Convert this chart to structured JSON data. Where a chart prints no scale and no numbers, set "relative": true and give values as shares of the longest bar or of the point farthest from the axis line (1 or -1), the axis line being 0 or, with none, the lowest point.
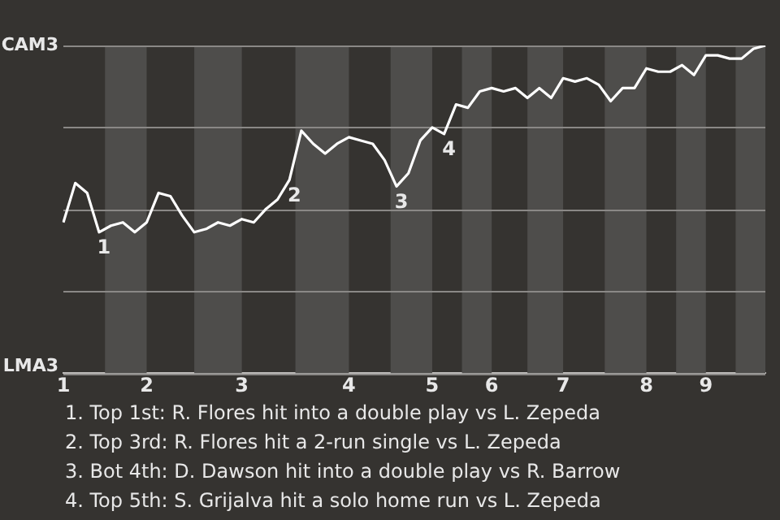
{
  "chart_data": {
    "type": "line",
    "categories": [
      "1",
      null,
      null,
      null,
      null,
      null,
      null,
      "2",
      null,
      null,
      null,
      null,
      null,
      null,
      null,
      "3",
      null,
      null,
      null,
      null,
      null,
      null,
      null,
      null,
      "4",
      null,
      null,
      null,
      null,
      null,
      null,
      "5",
      null,
      null,
      null,
      null,
      "6",
      null,
      null,
      null,
      null,
      null,
      "7",
      null,
      null,
      null,
      null,
      null,
      null,
      "8",
      null,
      null,
      null,
      null,
      "9",
      null,
      null,
      null,
      null,
      null
    ],
    "series": [
      {
        "color": "#ffffff",
        "values": [
          0.46,
          0.58,
          0.55,
          0.43,
          0.45,
          0.46,
          0.43,
          0.46,
          0.55,
          0.54,
          0.48,
          0.43,
          0.44,
          0.46,
          0.45,
          0.47,
          0.46,
          0.5,
          0.53,
          0.59,
          0.74,
          0.7,
          0.67,
          0.7,
          0.72,
          0.71,
          0.7,
          0.65,
          0.57,
          0.61,
          0.71,
          0.75,
          0.73,
          0.82,
          0.81,
          0.86,
          0.87,
          0.86,
          0.87,
          0.84,
          0.87,
          0.84,
          0.9,
          0.89,
          0.9,
          0.88,
          0.83,
          0.87,
          0.87,
          0.93,
          0.92,
          0.92,
          0.94,
          0.91,
          0.97,
          0.97,
          0.96,
          0.96,
          0.99,
          1.0
        ]
      }
    ],
    "relative": true,
    "grid": "y",
    "annotations": [
      "CAM3",
      "LMA3",
      {
        "text": "1",
        "y": 0.43
      },
      {
        "text": "2",
        "y": 0.59
      },
      {
        "text": "3",
        "y": 0.57
      },
      {
        "text": "4",
        "y": 0.73
      },
      "1. Top 1st: R. Flores hit into a double play vs L. Zepeda",
      "2. Top 3rd: R. Flores hit a 2-run single vs L. Zepeda",
      "3. Bot 4th: D. Dawson hit into a double play vs R. Barrow",
      "4. Top 5th: S. Grijalva hit a solo home run vs L. Zepeda"
    ],
    "marker": "none",
    "line_style": "solid"
  }
}
